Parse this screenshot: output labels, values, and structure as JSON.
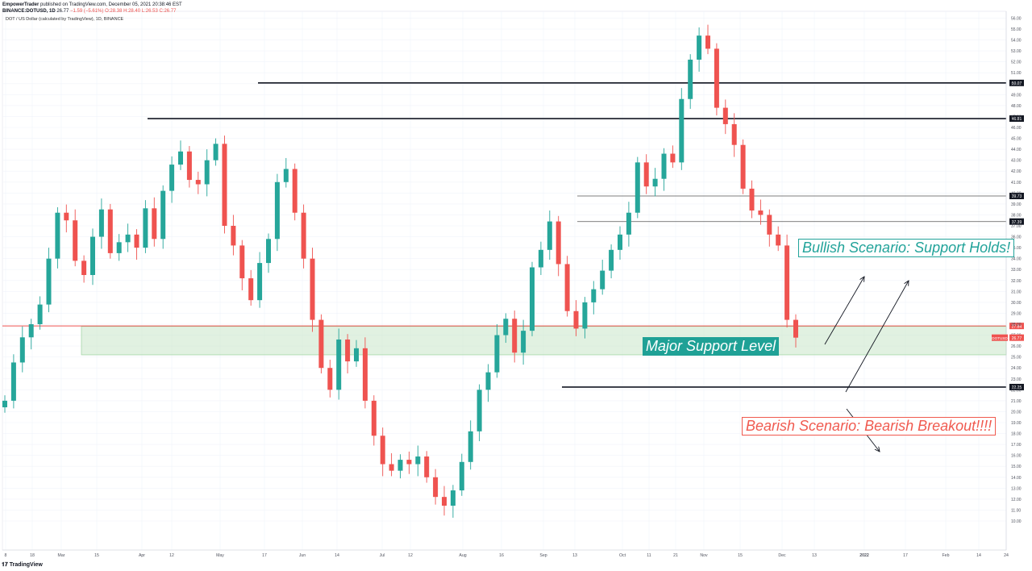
{
  "header": {
    "publisher": "EmpowerTrader",
    "published_text": "published on TradingView.com, December 05, 2021 20:38:46 EST",
    "symbol": "BINANCE:DOTUSD, 1D",
    "last": "26.77",
    "change": "−1.59 (−5.61%)",
    "ohlc": "O:28.38 H:28.40 L:26.53 C:26.77"
  },
  "symbol_line": "DOT / US Dollar (calculated by TradingView), 1D, BINANCE",
  "footer": {
    "brand": "TradingView"
  },
  "annotations": {
    "bullish": "Bullish Scenario: Support Holds!",
    "bearish": "Bearish Scenario: Bearish Breakout!!!!",
    "major": "Major Support Level"
  },
  "colors": {
    "up": "#26a69a",
    "down": "#ef5350",
    "zone": "#c8e6c9",
    "zone_border": "#a5d6a7",
    "line": "#131722"
  },
  "chart_data": {
    "type": "candlestick",
    "title": "DOT / US Dollar (calculated by TradingView), 1D, BINANCE",
    "ylim": [
      9,
      57
    ],
    "y_ticks": [
      10,
      11,
      12,
      13,
      14,
      15,
      16,
      17,
      18,
      19,
      20,
      21,
      22,
      23,
      24,
      25,
      26,
      27,
      28,
      29,
      30,
      31,
      32,
      33,
      34,
      35,
      36,
      37,
      38,
      39,
      40,
      41,
      42,
      43,
      44,
      45,
      46,
      47,
      48,
      49,
      50,
      51,
      52,
      53,
      54,
      55,
      56
    ],
    "x_tick_labels": [
      "8",
      "18",
      "Mar",
      "15",
      "Apr",
      "12",
      "May",
      "17",
      "Jun",
      "14",
      "Jul",
      "12",
      "Aug",
      "16",
      "Sep",
      "13",
      "Oct",
      "11",
      "21",
      "Nov",
      "15",
      "Dec",
      "13",
      "2022",
      "17",
      "Feb",
      "14",
      "24"
    ],
    "close_series": [
      21.0,
      24.5,
      26.8,
      28.0,
      29.8,
      34.0,
      38.2,
      37.5,
      33.8,
      32.5,
      36.0,
      38.5,
      34.5,
      35.5,
      36.2,
      35.0,
      38.6,
      35.8,
      40.2,
      42.6,
      43.8,
      41.2,
      40.8,
      43.0,
      44.5,
      37.0,
      35.2,
      32.2,
      30.2,
      33.6,
      35.8,
      41.0,
      42.2,
      38.2,
      34.0,
      28.4,
      24.0,
      22.0,
      26.6,
      24.6,
      25.8,
      21.0,
      17.8,
      15.2,
      14.6,
      15.6,
      15.2,
      15.9,
      14.0,
      12.2,
      11.4,
      12.8,
      15.4,
      18.2,
      22.0,
      23.6,
      27.0,
      28.5,
      25.4,
      27.4,
      33.2,
      34.8,
      37.4,
      33.5,
      29.2,
      27.6,
      30.0,
      31.2,
      32.9,
      34.8,
      36.2,
      38.2,
      42.8,
      40.6,
      41.3,
      43.6,
      42.8,
      48.6,
      52.2,
      54.4,
      53.2,
      47.8,
      46.3,
      44.4,
      40.4,
      38.4,
      38.0,
      36.2,
      35.2,
      28.4,
      26.77
    ],
    "horizontal_levels": [
      {
        "label": "50.07",
        "value": 50.07,
        "style": "solid-thick"
      },
      {
        "label": "46.81",
        "value": 46.81,
        "style": "solid-thick"
      },
      {
        "label": "39.73",
        "value": 39.73,
        "style": "thin"
      },
      {
        "label": "37.39",
        "value": 37.39,
        "style": "thin"
      },
      {
        "label": "27.84",
        "value": 27.84,
        "style": "red"
      },
      {
        "label": "22.25",
        "value": 22.25,
        "style": "solid-thick"
      }
    ],
    "support_zone": [
      25.2,
      27.8
    ],
    "last_price_label": "26.77",
    "symbol_tag": "DOTUSD"
  }
}
